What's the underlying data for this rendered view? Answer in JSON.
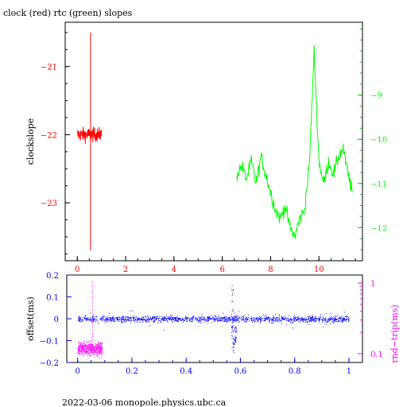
{
  "page": {
    "title": "clock (red) rtc (green) slopes",
    "footer": "2022-03-06 monopole.physics.ubc.ca"
  },
  "colors": {
    "axis": "#000000",
    "red": "#ff0000",
    "green": "#00ff00",
    "blue": "#0000ff",
    "magenta": "#ff00ff"
  },
  "chart_data": [
    {
      "type": "line",
      "title": "clock (red) rtc (green) slopes",
      "x": {
        "ticks": [
          0,
          2,
          4,
          6,
          8,
          10
        ],
        "tick_color": "red",
        "range": [
          -0.5,
          11.8
        ]
      },
      "y_left": {
        "label": "clockslope",
        "ticks": [
          -21,
          -22,
          -23
        ],
        "tick_color": "red",
        "range": [
          -23.85,
          -20.35
        ]
      },
      "y_right": {
        "ticks": [
          -9,
          -10,
          -11,
          -12
        ],
        "tick_color": "green",
        "range": [
          -12.75,
          -7.35
        ]
      },
      "series": [
        {
          "color": "red",
          "axis": "left",
          "x_range": [
            0.0,
            1.0
          ],
          "level": -22.0,
          "noise": 0.08,
          "spike": {
            "x": 0.55,
            "min": -23.7,
            "max": -20.5
          }
        },
        {
          "color": "green",
          "axis": "right",
          "x": [
            6.6,
            6.8,
            7.0,
            7.2,
            7.4,
            7.6,
            7.8,
            8.0,
            8.2,
            8.4,
            8.6,
            8.8,
            9.0,
            9.2,
            9.4,
            9.6,
            9.8,
            10.0,
            10.2,
            10.4,
            10.6,
            10.8,
            11.0,
            11.2,
            11.4
          ],
          "values": [
            -10.8,
            -10.6,
            -10.9,
            -10.5,
            -11.0,
            -10.4,
            -10.8,
            -11.2,
            -11.6,
            -11.8,
            -11.5,
            -12.0,
            -12.2,
            -11.8,
            -11.6,
            -10.6,
            -8.0,
            -10.5,
            -11.0,
            -10.5,
            -10.8,
            -10.4,
            -10.2,
            -10.8,
            -11.2
          ]
        }
      ]
    },
    {
      "type": "scatter",
      "x": {
        "ticks": [
          0,
          0.2,
          0.4,
          0.6,
          0.8,
          1
        ],
        "tick_labels": [
          "0",
          "0.2",
          "0.4",
          "0.6",
          "0.8",
          "1"
        ],
        "range": [
          -0.04,
          1.05
        ]
      },
      "y_left": {
        "label": "offset(ms)",
        "ticks": [
          0.2,
          0.1,
          0,
          -0.1,
          -0.2
        ],
        "tick_labels": [
          "0.2",
          "0.1",
          "0",
          "−0.1",
          "−0.2"
        ],
        "range": [
          -0.2,
          0.2
        ]
      },
      "y_right": {
        "label": "rnd−trip(ms)",
        "ticks": [
          1,
          0.1
        ],
        "tick_labels": [
          "1",
          "0.1"
        ],
        "scale": "log",
        "range": [
          0.075,
          1.3
        ]
      },
      "series": [
        {
          "color": "blue",
          "axis": "left",
          "x_range": [
            0.0,
            1.0
          ],
          "level": 0.0,
          "spread": 0.012,
          "events": [
            {
              "x": 0.57,
              "min": -0.16,
              "max": 0.16
            },
            {
              "x": 0.58,
              "min": -0.12,
              "max": 0.03
            }
          ]
        },
        {
          "color": "magenta",
          "axis": "right",
          "x_range": [
            0.0,
            0.09
          ],
          "level": 0.12,
          "spread_factor": 1.2,
          "spike": {
            "x": 0.055,
            "max": 1.05
          }
        }
      ]
    }
  ]
}
